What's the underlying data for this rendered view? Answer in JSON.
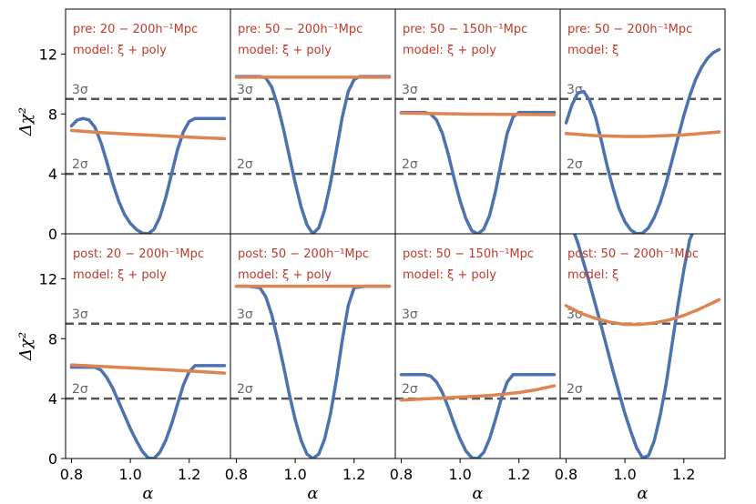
{
  "chart_data": {
    "type": "line",
    "layout": "2x4 panel grid, shared axes",
    "xlabel": "α",
    "ylabel": "Δχ²",
    "xlim": [
      0.78,
      1.34
    ],
    "ylim": [
      0,
      15
    ],
    "xticks": [
      0.8,
      1.0,
      1.2
    ],
    "xtick_labels": [
      "0.8",
      "1.0",
      "1.2"
    ],
    "yticks": [
      0,
      4,
      8,
      12
    ],
    "ytick_labels": [
      "0",
      "4",
      "8",
      "12"
    ],
    "reference_lines": [
      {
        "label": "2σ",
        "y": 4
      },
      {
        "label": "3σ",
        "y": 9
      }
    ],
    "colors": {
      "series_blue": "#4c72b0",
      "series_orange": "#dd8452",
      "reference": "#555555",
      "annotation": "#c0392b"
    },
    "panels": [
      {
        "row": 0,
        "col": 0,
        "annotation_line1": "pre: 20 − 200h⁻¹Mpc",
        "annotation_line2": "model: ξ + poly",
        "series": [
          {
            "color": "blue",
            "x": [
              0.8,
              0.82,
              0.84,
              0.86,
              0.88,
              0.9,
              0.92,
              0.94,
              0.96,
              0.98,
              1.0,
              1.02,
              1.04,
              1.06,
              1.08,
              1.1,
              1.12,
              1.14,
              1.16,
              1.18,
              1.2,
              1.22,
              1.24,
              1.26,
              1.28,
              1.3,
              1.32
            ],
            "y": [
              7.2,
              7.6,
              7.7,
              7.6,
              7.1,
              6.1,
              4.8,
              3.4,
              2.2,
              1.3,
              0.7,
              0.3,
              0.05,
              0.0,
              0.3,
              1.1,
              2.4,
              4.0,
              5.6,
              6.8,
              7.5,
              7.7,
              7.7,
              7.7,
              7.7,
              7.7,
              7.7
            ]
          },
          {
            "color": "orange",
            "x": [
              0.8,
              0.9,
              1.0,
              1.1,
              1.2,
              1.32
            ],
            "y": [
              6.9,
              6.75,
              6.65,
              6.55,
              6.45,
              6.35
            ]
          }
        ]
      },
      {
        "row": 0,
        "col": 1,
        "annotation_line1": "pre: 50 − 200h⁻¹Mpc",
        "annotation_line2": "model: ξ + poly",
        "series": [
          {
            "color": "blue",
            "x": [
              0.8,
              0.84,
              0.88,
              0.9,
              0.92,
              0.94,
              0.96,
              0.98,
              1.0,
              1.02,
              1.04,
              1.06,
              1.08,
              1.1,
              1.12,
              1.14,
              1.16,
              1.18,
              1.2,
              1.22,
              1.26,
              1.3,
              1.32
            ],
            "y": [
              10.5,
              10.5,
              10.5,
              10.4,
              9.8,
              8.6,
              7.0,
              5.2,
              3.4,
              1.8,
              0.6,
              0.0,
              0.4,
              1.6,
              3.4,
              5.6,
              7.8,
              9.5,
              10.3,
              10.5,
              10.5,
              10.5,
              10.5
            ]
          },
          {
            "color": "orange",
            "x": [
              0.8,
              1.0,
              1.2,
              1.32
            ],
            "y": [
              10.45,
              10.45,
              10.45,
              10.45
            ]
          }
        ]
      },
      {
        "row": 0,
        "col": 2,
        "annotation_line1": "pre: 50 − 150h⁻¹Mpc",
        "annotation_line2": "model: ξ + poly",
        "series": [
          {
            "color": "blue",
            "x": [
              0.8,
              0.84,
              0.88,
              0.9,
              0.92,
              0.94,
              0.96,
              0.98,
              1.0,
              1.02,
              1.04,
              1.06,
              1.08,
              1.1,
              1.12,
              1.14,
              1.16,
              1.18,
              1.2,
              1.24,
              1.28,
              1.32
            ],
            "y": [
              8.1,
              8.1,
              8.1,
              8.0,
              7.6,
              6.7,
              5.3,
              3.7,
              2.2,
              1.0,
              0.2,
              0.0,
              0.3,
              1.2,
              2.8,
              4.8,
              6.7,
              7.8,
              8.1,
              8.1,
              8.1,
              8.1
            ]
          },
          {
            "color": "orange",
            "x": [
              0.8,
              1.0,
              1.2,
              1.32
            ],
            "y": [
              8.05,
              8.0,
              7.97,
              7.95
            ]
          }
        ]
      },
      {
        "row": 0,
        "col": 3,
        "annotation_line1": "pre: 50 − 200h⁻¹Mpc",
        "annotation_line2": "model: ξ",
        "series": [
          {
            "color": "blue",
            "x": [
              0.8,
              0.82,
              0.84,
              0.86,
              0.88,
              0.9,
              0.92,
              0.94,
              0.96,
              0.98,
              1.0,
              1.02,
              1.04,
              1.06,
              1.08,
              1.1,
              1.12,
              1.14,
              1.16,
              1.18,
              1.2,
              1.22,
              1.24,
              1.26,
              1.28,
              1.3,
              1.32
            ],
            "y": [
              7.4,
              8.6,
              9.4,
              9.5,
              8.9,
              7.8,
              6.2,
              4.5,
              3.0,
              1.7,
              0.8,
              0.25,
              0.0,
              0.05,
              0.4,
              1.1,
              2.1,
              3.4,
              4.9,
              6.4,
              7.9,
              9.2,
              10.3,
              11.1,
              11.7,
              12.1,
              12.3
            ]
          },
          {
            "color": "orange",
            "x": [
              0.8,
              0.9,
              1.0,
              1.06,
              1.1,
              1.2,
              1.32
            ],
            "y": [
              6.7,
              6.55,
              6.5,
              6.5,
              6.52,
              6.6,
              6.8
            ]
          }
        ]
      },
      {
        "row": 1,
        "col": 0,
        "annotation_line1": "post: 20 − 200h⁻¹Mpc",
        "annotation_line2": "model: ξ + poly",
        "series": [
          {
            "color": "blue",
            "x": [
              0.8,
              0.84,
              0.88,
              0.9,
              0.92,
              0.94,
              0.96,
              0.98,
              1.0,
              1.02,
              1.04,
              1.06,
              1.08,
              1.1,
              1.12,
              1.14,
              1.16,
              1.18,
              1.2,
              1.22,
              1.26,
              1.3,
              1.32
            ],
            "y": [
              6.1,
              6.1,
              6.1,
              5.9,
              5.4,
              4.7,
              3.8,
              2.9,
              2.0,
              1.2,
              0.5,
              0.05,
              0.0,
              0.4,
              1.2,
              2.3,
              3.6,
              4.9,
              5.8,
              6.2,
              6.2,
              6.2,
              6.2
            ]
          },
          {
            "color": "orange",
            "x": [
              0.8,
              1.0,
              1.2,
              1.32
            ],
            "y": [
              6.25,
              6.05,
              5.85,
              5.7
            ]
          }
        ]
      },
      {
        "row": 1,
        "col": 1,
        "annotation_line1": "post: 50 − 200h⁻¹Mpc",
        "annotation_line2": "model: ξ + poly",
        "series": [
          {
            "color": "blue",
            "x": [
              0.8,
              0.84,
              0.88,
              0.9,
              0.92,
              0.94,
              0.96,
              0.98,
              1.0,
              1.02,
              1.04,
              1.06,
              1.08,
              1.1,
              1.12,
              1.14,
              1.16,
              1.18,
              1.2,
              1.24,
              1.28,
              1.32
            ],
            "y": [
              11.5,
              11.5,
              11.4,
              10.8,
              9.6,
              8.0,
              6.2,
              4.3,
              2.6,
              1.2,
              0.3,
              0.0,
              0.3,
              1.3,
              3.0,
              5.3,
              7.9,
              10.2,
              11.4,
              11.5,
              11.5,
              11.5
            ]
          },
          {
            "color": "orange",
            "x": [
              0.8,
              1.0,
              1.2,
              1.32
            ],
            "y": [
              11.5,
              11.5,
              11.5,
              11.5
            ]
          }
        ]
      },
      {
        "row": 1,
        "col": 2,
        "annotation_line1": "post: 50 − 150h⁻¹Mpc",
        "annotation_line2": "model: ξ + poly",
        "series": [
          {
            "color": "blue",
            "x": [
              0.8,
              0.84,
              0.88,
              0.9,
              0.92,
              0.94,
              0.96,
              0.98,
              1.0,
              1.02,
              1.04,
              1.06,
              1.08,
              1.1,
              1.12,
              1.14,
              1.16,
              1.18,
              1.2,
              1.24,
              1.28,
              1.32
            ],
            "y": [
              5.6,
              5.6,
              5.6,
              5.5,
              5.1,
              4.4,
              3.4,
              2.3,
              1.3,
              0.5,
              0.05,
              0.0,
              0.4,
              1.3,
              2.6,
              4.0,
              5.1,
              5.6,
              5.6,
              5.6,
              5.6,
              5.6
            ]
          },
          {
            "color": "orange",
            "x": [
              0.8,
              0.9,
              1.0,
              1.1,
              1.2,
              1.26,
              1.32
            ],
            "y": [
              3.9,
              4.0,
              4.1,
              4.2,
              4.4,
              4.6,
              4.85
            ]
          }
        ]
      },
      {
        "row": 1,
        "col": 3,
        "annotation_line1": "post: 50 − 200h⁻¹Mpc",
        "annotation_line2": "model: ξ",
        "series": [
          {
            "color": "blue",
            "x": [
              0.8,
              0.84,
              0.88,
              0.92,
              0.96,
              1.0,
              1.02,
              1.04,
              1.06,
              1.08,
              1.1,
              1.12,
              1.14,
              1.16,
              1.18,
              1.2,
              1.22,
              1.24
            ],
            "y": [
              16.5,
              14.4,
              11.7,
              8.8,
              5.8,
              3.0,
              1.8,
              0.7,
              0.05,
              0.2,
              1.2,
              2.9,
              5.0,
              7.6,
              10.2,
              12.6,
              14.6,
              15.5
            ]
          },
          {
            "color": "orange",
            "x": [
              0.8,
              0.85,
              0.9,
              0.95,
              1.0,
              1.05,
              1.1,
              1.15,
              1.2,
              1.25,
              1.32
            ],
            "y": [
              10.2,
              9.7,
              9.35,
              9.1,
              8.95,
              8.95,
              9.05,
              9.25,
              9.55,
              9.95,
              10.6
            ]
          }
        ]
      }
    ]
  }
}
